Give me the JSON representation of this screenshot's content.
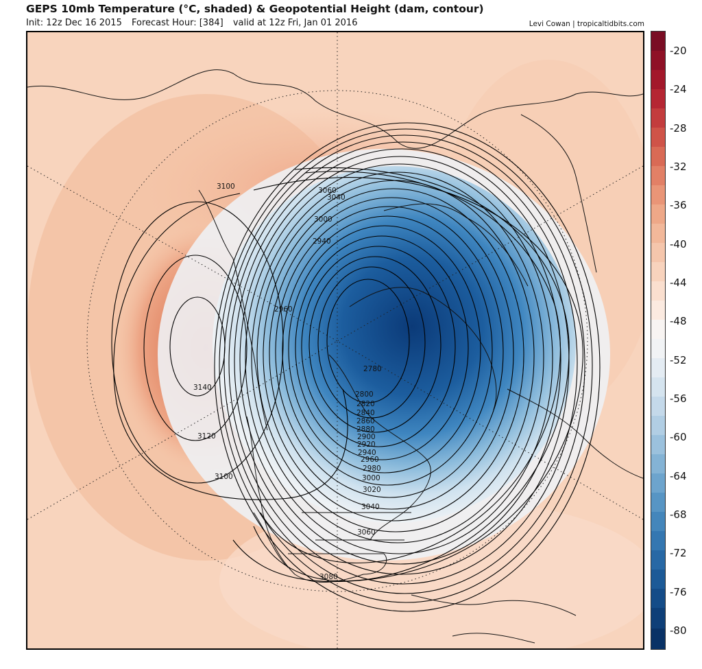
{
  "header": {
    "title": "GEPS 10mb Temperature (°C, shaded) & Geopotential Height (dam, contour)",
    "init": "Init: 12z Dec 16 2015",
    "forecast_hour": "Forecast Hour: [384]",
    "valid": "valid at 12z Fri, Jan 01 2016",
    "credit": "Levi Cowan | tropicaltidbits.com"
  },
  "colorbar": {
    "labels": [
      "-20",
      "-24",
      "-28",
      "-32",
      "-36",
      "-40",
      "-44",
      "-48",
      "-52",
      "-56",
      "-60",
      "-64",
      "-68",
      "-72",
      "-76",
      "-80"
    ]
  },
  "map": {
    "contour_labels": [
      "3100",
      "3060",
      "3040",
      "3000",
      "2940",
      "2960",
      "2780",
      "2800",
      "2820",
      "2840",
      "2860",
      "2880",
      "2900",
      "2920",
      "2940",
      "2960",
      "2980",
      "3000",
      "3020",
      "3040",
      "3060",
      "3080",
      "3100",
      "3120",
      "3140"
    ]
  }
}
